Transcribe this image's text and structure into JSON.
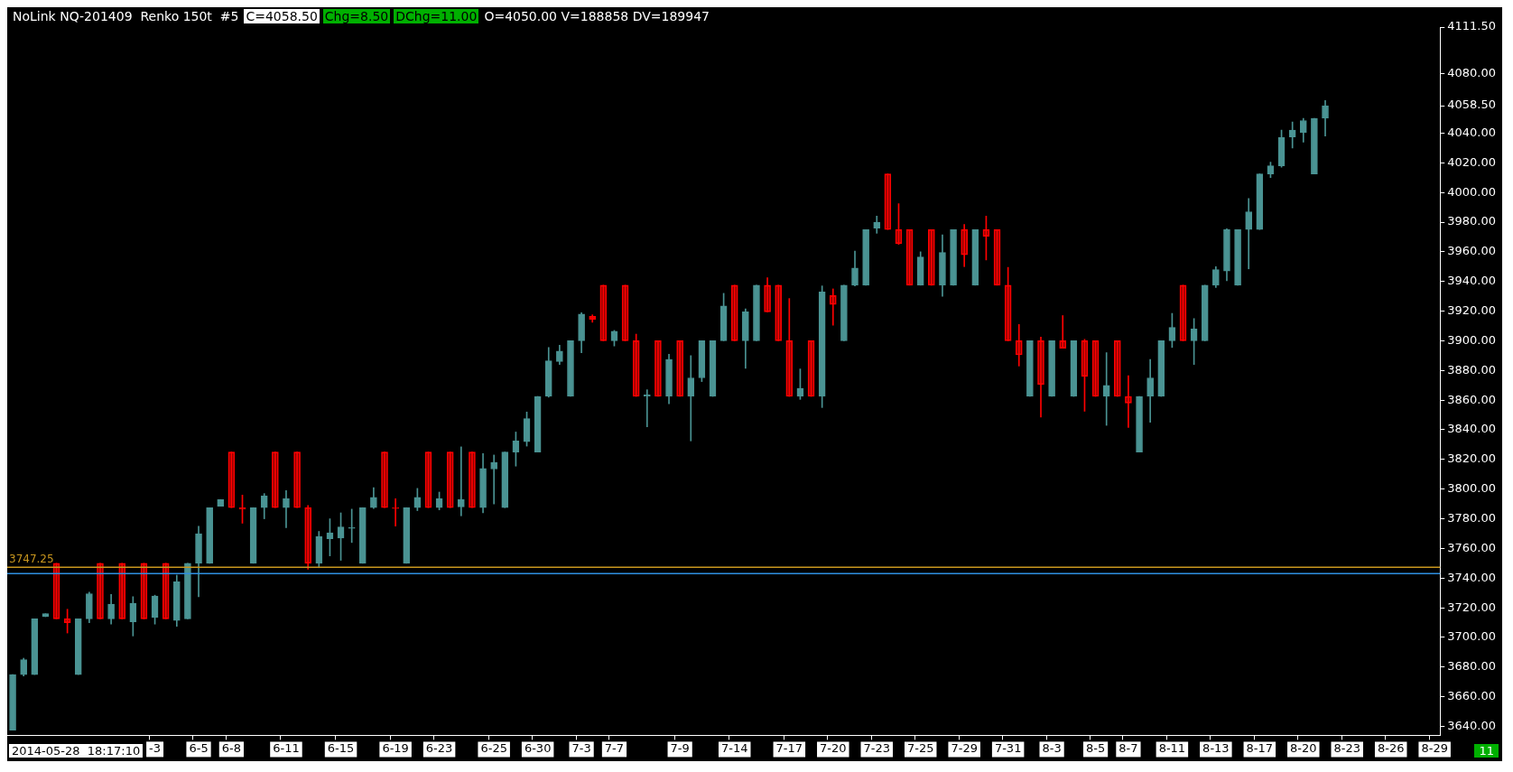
{
  "chart_data": {
    "type": "candlestick",
    "title": "NoLink NQ-201409  Renko 150t  #5",
    "annotations": [
      "C=4058.50",
      "Chg=8.50",
      "DChg=11.00",
      "O=4050.00 V=188858 DV=189947",
      "2014-05-28  18:17:10",
      "11"
    ],
    "categories": [
      null,
      null,
      null,
      null,
      null,
      null,
      null,
      null,
      null,
      null,
      null,
      null,
      null,
      "-3",
      null,
      null,
      null,
      "6-5",
      null,
      null,
      "6-8",
      null,
      null,
      null,
      null,
      "6-11",
      null,
      null,
      null,
      null,
      "6-15",
      null,
      null,
      null,
      null,
      "6-19",
      null,
      null,
      null,
      "6-23",
      null,
      null,
      null,
      null,
      "6-25",
      null,
      null,
      null,
      "6-30",
      null,
      null,
      null,
      "7-3",
      null,
      null,
      "7-7",
      null,
      null,
      null,
      null,
      null,
      "7-9",
      null,
      null,
      null,
      null,
      "7-14",
      null,
      null,
      null,
      null,
      "7-17",
      null,
      null,
      null,
      "7-20",
      null,
      null,
      null,
      "7-23",
      null,
      null,
      null,
      "7-25",
      null,
      null,
      null,
      "7-29",
      null,
      null,
      null,
      "7-31",
      null,
      null,
      null,
      "8-3",
      null,
      null,
      null,
      "8-5",
      null,
      null,
      "8-7",
      null,
      null,
      null,
      "8-11",
      null,
      null,
      null,
      "8-13",
      null,
      null,
      null,
      "8-17",
      null,
      null,
      null,
      "8-20",
      null,
      null,
      null,
      "8-23",
      null,
      null,
      null,
      "8-26",
      null,
      null,
      null,
      "8-29"
    ],
    "ohlc": [
      [
        3637.5,
        3675,
        3637.5,
        3675
      ],
      [
        3675,
        3686,
        3674,
        3685
      ],
      [
        3675,
        3712.5,
        3675,
        3712.5
      ],
      [
        3714,
        3716,
        3714,
        3716
      ],
      [
        3750,
        3750,
        3712.5,
        3712.5
      ],
      [
        3712.5,
        3719,
        3703,
        3710
      ],
      [
        3675,
        3712.5,
        3675,
        3712.5
      ],
      [
        3712.5,
        3730.5,
        3710,
        3729.5
      ],
      [
        3750,
        3750,
        3712.5,
        3712.5
      ],
      [
        3712.5,
        3729,
        3709,
        3722.5
      ],
      [
        3750,
        3750,
        3712.5,
        3712.5
      ],
      [
        3710.5,
        3727.5,
        3701,
        3723
      ],
      [
        3750,
        3750,
        3712.5,
        3712.5
      ],
      [
        3713.5,
        3728.5,
        3709,
        3728
      ],
      [
        3750,
        3750,
        3712.5,
        3712.5
      ],
      [
        3711.5,
        3742,
        3707.5,
        3737.5
      ],
      [
        3712.5,
        3750,
        3712.5,
        3750
      ],
      [
        3750,
        3775,
        3727.5,
        3770
      ],
      [
        3750,
        3787.5,
        3750,
        3787.5
      ],
      [
        3788.5,
        3793,
        3788.5,
        3793
      ],
      [
        3825,
        3825,
        3787.5,
        3787.5
      ],
      [
        3787.5,
        3796,
        3777,
        3786.5
      ],
      [
        3750,
        3787.5,
        3750,
        3787.5
      ],
      [
        3787.5,
        3797,
        3780,
        3795.5
      ],
      [
        3825,
        3825,
        3787.5,
        3787.5
      ],
      [
        3787.5,
        3799,
        3774,
        3793.5
      ],
      [
        3825,
        3825,
        3787.5,
        3787.5
      ],
      [
        3787.5,
        3789,
        3746,
        3750
      ],
      [
        3750,
        3771.5,
        3747,
        3768
      ],
      [
        3766.5,
        3780,
        3755,
        3770.5
      ],
      [
        3767,
        3784,
        3752,
        3774.5
      ],
      [
        3773.5,
        3786.5,
        3764,
        3774
      ],
      [
        3750,
        3787.5,
        3750,
        3787.5
      ],
      [
        3787.5,
        3801,
        3787,
        3794.5
      ],
      [
        3825,
        3825,
        3787.5,
        3787.5
      ],
      [
        3787.5,
        3793.5,
        3775,
        3787
      ],
      [
        3750,
        3787.5,
        3750,
        3787.5
      ],
      [
        3787.5,
        3800.5,
        3785.5,
        3794.5
      ],
      [
        3825,
        3825,
        3787.5,
        3787.5
      ],
      [
        3787.5,
        3798,
        3786,
        3793.5
      ],
      [
        3825,
        3825,
        3787.5,
        3787.5
      ],
      [
        3788,
        3828.5,
        3782,
        3793
      ],
      [
        3825,
        3825,
        3787.5,
        3787.5
      ],
      [
        3787.5,
        3824,
        3784,
        3814
      ],
      [
        3813.5,
        3823,
        3790,
        3818
      ],
      [
        3787.5,
        3825,
        3787.5,
        3825
      ],
      [
        3825,
        3838.5,
        3815.5,
        3832.5
      ],
      [
        3832,
        3852,
        3829,
        3847.5
      ],
      [
        3825,
        3862.5,
        3825,
        3862.5
      ],
      [
        3862.5,
        3895.5,
        3862,
        3886.5
      ],
      [
        3886,
        3897,
        3884,
        3893
      ],
      [
        3862.5,
        3900,
        3862.5,
        3900
      ],
      [
        3900,
        3919,
        3892,
        3918
      ],
      [
        3916.5,
        3917.5,
        3912.5,
        3914.5
      ],
      [
        3937.5,
        3937.5,
        3900,
        3900
      ],
      [
        3900,
        3907,
        3896.5,
        3906.5
      ],
      [
        3937.5,
        3937.5,
        3900,
        3900
      ],
      [
        3900,
        3904.5,
        3862.5,
        3862.5
      ],
      [
        3862.5,
        3867,
        3842,
        3863.5
      ],
      [
        3900,
        3900,
        3862.5,
        3862.5
      ],
      [
        3862.5,
        3891,
        3857.5,
        3887.5
      ],
      [
        3900,
        3900,
        3862.5,
        3862.5
      ],
      [
        3862.5,
        3890,
        3832.5,
        3875
      ],
      [
        3875,
        3900,
        3872.5,
        3900
      ],
      [
        3862.5,
        3900,
        3862.5,
        3900
      ],
      [
        3900,
        3932,
        3900,
        3923.5
      ],
      [
        3937.5,
        3937.5,
        3900,
        3900
      ],
      [
        3900,
        3921.5,
        3881.5,
        3919.5
      ],
      [
        3900,
        3937.5,
        3900,
        3937.5
      ],
      [
        3937.5,
        3942.5,
        3919.5,
        3919.5
      ],
      [
        3937.5,
        3937.5,
        3900,
        3900
      ],
      [
        3900,
        3928.5,
        3862.5,
        3862.5
      ],
      [
        3862.5,
        3881,
        3860.5,
        3868
      ],
      [
        3900,
        3900,
        3862.5,
        3862.5
      ],
      [
        3862.5,
        3937,
        3855,
        3933
      ],
      [
        3930.5,
        3935,
        3910.5,
        3924.5
      ],
      [
        3900,
        3937.5,
        3900,
        3937.5
      ],
      [
        3937.5,
        3960.5,
        3937,
        3949
      ],
      [
        3937.5,
        3975,
        3937.5,
        3975
      ],
      [
        3976,
        3984,
        3972.5,
        3980
      ],
      [
        4012.5,
        4012.5,
        3975,
        3975
      ],
      [
        3975,
        3992.5,
        3965,
        3965.5
      ],
      [
        3975,
        3975,
        3937.5,
        3937.5
      ],
      [
        3937.5,
        3960,
        3937.5,
        3956.5
      ],
      [
        3975,
        3975,
        3937.5,
        3937.5
      ],
      [
        3937.5,
        3971.5,
        3930,
        3959.5
      ],
      [
        3937.5,
        3975,
        3937.5,
        3975
      ],
      [
        3975,
        3978.5,
        3950,
        3958
      ],
      [
        3937.5,
        3975,
        3937.5,
        3975
      ],
      [
        3975,
        3984,
        3954.5,
        3970.5
      ],
      [
        3975,
        3975,
        3937.5,
        3937.5
      ],
      [
        3937.5,
        3949.5,
        3900,
        3900
      ],
      [
        3900,
        3911,
        3883,
        3890.5
      ],
      [
        3862.5,
        3900,
        3862.5,
        3900
      ],
      [
        3900,
        3902.5,
        3848.5,
        3870.5
      ],
      [
        3862.5,
        3900,
        3862.5,
        3900
      ],
      [
        3900,
        3917,
        3895,
        3895
      ],
      [
        3862.5,
        3900,
        3862.5,
        3900
      ],
      [
        3900,
        3901,
        3852.5,
        3876
      ],
      [
        3900,
        3900,
        3862.5,
        3862.5
      ],
      [
        3862.5,
        3892,
        3843,
        3870
      ],
      [
        3900,
        3900,
        3862.5,
        3862.5
      ],
      [
        3862.5,
        3876.5,
        3841.5,
        3858
      ],
      [
        3825,
        3862.5,
        3825,
        3862.5
      ],
      [
        3862.5,
        3887.5,
        3845,
        3875
      ],
      [
        3862.5,
        3900,
        3862.5,
        3900
      ],
      [
        3900,
        3918.5,
        3895.5,
        3909
      ],
      [
        3937.5,
        3937.5,
        3900,
        3900
      ],
      [
        3900,
        3915,
        3884,
        3908
      ],
      [
        3900,
        3937.5,
        3900,
        3937.5
      ],
      [
        3937.5,
        3950,
        3936,
        3948
      ],
      [
        3947,
        3975.5,
        3940.5,
        3975
      ],
      [
        3937.5,
        3975,
        3937.5,
        3975
      ],
      [
        3975,
        3996,
        3948.5,
        3987
      ],
      [
        3975,
        4012.5,
        3975,
        4012.5
      ],
      [
        4012.5,
        4020.5,
        4010,
        4018
      ],
      [
        4018,
        4042,
        4017,
        4037
      ],
      [
        4037.5,
        4047.5,
        4030,
        4042
      ],
      [
        4040.5,
        4050,
        4034,
        4048.5
      ],
      [
        4012.5,
        4050,
        4012.5,
        4050
      ],
      [
        4050,
        4062,
        4038,
        4058.5
      ],
      null,
      null,
      null,
      null,
      null,
      null,
      null,
      null,
      null,
      null
    ],
    "colors": [
      "#4a9393",
      "#4a9393",
      "#4a9393",
      "#4a9393",
      "#ff0000",
      "#ff0000",
      "#4a9393",
      "#4a9393",
      "#ff0000",
      "#4a9393",
      "#ff0000",
      "#4a9393",
      "#ff0000",
      "#4a9393",
      "#ff0000",
      "#4a9393",
      "#4a9393",
      "#4a9393",
      "#4a9393",
      "#4a9393",
      "#ff0000",
      "#ff0000",
      "#4a9393",
      "#4a9393",
      "#ff0000",
      "#4a9393",
      "#ff0000",
      "#ff0000",
      "#4a9393",
      "#4a9393",
      "#4a9393",
      "#4a9393",
      "#4a9393",
      "#4a9393",
      "#ff0000",
      "#ff0000",
      "#4a9393",
      "#4a9393",
      "#ff0000",
      "#4a9393",
      "#ff0000",
      "#4a9393",
      "#ff0000",
      "#4a9393",
      "#4a9393",
      "#4a9393",
      "#4a9393",
      "#4a9393",
      "#4a9393",
      "#4a9393",
      "#4a9393",
      "#4a9393",
      "#4a9393",
      "#ff0000",
      "#ff0000",
      "#4a9393",
      "#ff0000",
      "#ff0000",
      "#4a9393",
      "#ff0000",
      "#4a9393",
      "#ff0000",
      "#4a9393",
      "#4a9393",
      "#4a9393",
      "#4a9393",
      "#ff0000",
      "#4a9393",
      "#4a9393",
      "#ff0000",
      "#ff0000",
      "#ff0000",
      "#4a9393",
      "#ff0000",
      "#4a9393",
      "#ff0000",
      "#4a9393",
      "#4a9393",
      "#4a9393",
      "#4a9393",
      "#ff0000",
      "#ff0000",
      "#ff0000",
      "#4a9393",
      "#ff0000",
      "#4a9393",
      "#4a9393",
      "#ff0000",
      "#4a9393",
      "#ff0000",
      "#ff0000",
      "#ff0000",
      "#ff0000",
      "#4a9393",
      "#ff0000",
      "#4a9393",
      "#ff0000",
      "#4a9393",
      "#ff0000",
      "#ff0000",
      "#4a9393",
      "#ff0000",
      "#ff0000",
      "#4a9393",
      "#4a9393",
      "#4a9393",
      "#4a9393",
      "#ff0000",
      "#4a9393",
      "#4a9393",
      "#4a9393",
      "#4a9393",
      "#4a9393",
      "#4a9393",
      "#4a9393",
      "#4a9393",
      "#4a9393",
      "#4a9393",
      "#4a9393",
      "#4a9393",
      "#4a9393",
      null,
      null,
      null,
      null,
      null,
      null,
      null,
      null,
      null,
      null
    ],
    "ylim": [
      3634,
      4111.5
    ],
    "yticks": [
      {
        "value": 3640,
        "label": "3640.00"
      },
      {
        "value": 3660,
        "label": "3660.00"
      },
      {
        "value": 3680,
        "label": "3680.00"
      },
      {
        "value": 3700,
        "label": "3700.00"
      },
      {
        "value": 3720,
        "label": "3720.00"
      },
      {
        "value": 3740,
        "label": "3740.00"
      },
      {
        "value": 3760,
        "label": "3760.00"
      },
      {
        "value": 3780,
        "label": "3780.00"
      },
      {
        "value": 3800,
        "label": "3800.00"
      },
      {
        "value": 3820,
        "label": "3820.00"
      },
      {
        "value": 3840,
        "label": "3840.00"
      },
      {
        "value": 3860,
        "label": "3860.00"
      },
      {
        "value": 3880,
        "label": "3880.00"
      },
      {
        "value": 3900,
        "label": "3900.00"
      },
      {
        "value": 3920,
        "label": "3920.00"
      },
      {
        "value": 3940,
        "label": "3940.00"
      },
      {
        "value": 3960,
        "label": "3960.00"
      },
      {
        "value": 3980,
        "label": "3980.00"
      },
      {
        "value": 4000,
        "label": "4000.00"
      },
      {
        "value": 4020,
        "label": "4020.00"
      },
      {
        "value": 4040,
        "label": "4040.00"
      },
      {
        "value": 4058.5,
        "label": "4058.50"
      },
      {
        "value": 4080,
        "label": "4080.00"
      },
      {
        "value": 4111.5,
        "label": "4111.50"
      }
    ],
    "ref_lines": [
      {
        "axis": "y",
        "value": 3747.25,
        "label": "3747.25",
        "color": "#c8961e"
      },
      {
        "axis": "y",
        "value": 3743,
        "color": "#2f8fe0"
      }
    ]
  }
}
